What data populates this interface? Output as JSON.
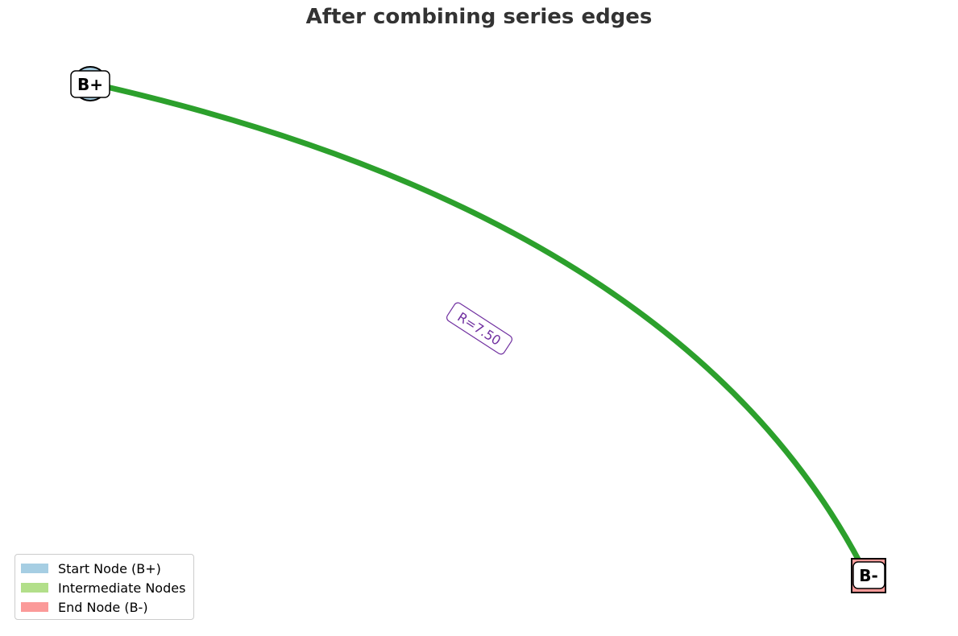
{
  "title": "After combining series edges",
  "nodes": [
    {
      "id": "start",
      "label": "B+",
      "shape": "circle",
      "color": "#a6cee3"
    },
    {
      "id": "end",
      "label": "B-",
      "shape": "square",
      "color": "#fb9a99"
    }
  ],
  "edges": [
    {
      "from": "B+",
      "to": "B-",
      "label": "R=7.50",
      "color": "#2ca02c",
      "label_color": "#7030a0"
    }
  ],
  "legend": {
    "items": [
      {
        "label": "Start Node (B+)",
        "color": "#a6cee3"
      },
      {
        "label": "Intermediate Nodes",
        "color": "#b2df8a"
      },
      {
        "label": "End Node (B-)",
        "color": "#fb9a99"
      }
    ]
  }
}
